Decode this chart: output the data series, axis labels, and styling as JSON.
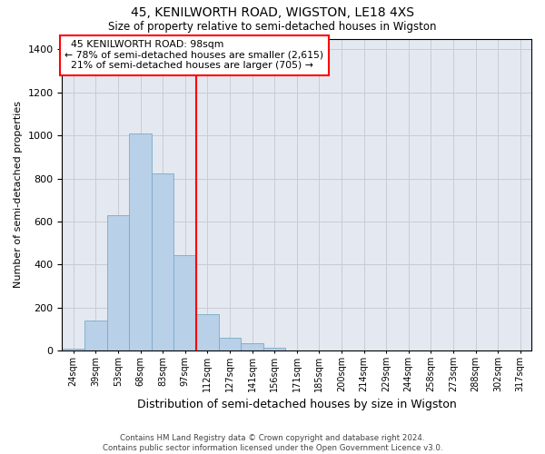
{
  "title1": "45, KENILWORTH ROAD, WIGSTON, LE18 4XS",
  "title2": "Size of property relative to semi-detached houses in Wigston",
  "xlabel": "Distribution of semi-detached houses by size in Wigston",
  "ylabel": "Number of semi-detached properties",
  "footnote1": "Contains HM Land Registry data © Crown copyright and database right 2024.",
  "footnote2": "Contains public sector information licensed under the Open Government Licence v3.0.",
  "categories": [
    "24sqm",
    "39sqm",
    "53sqm",
    "68sqm",
    "83sqm",
    "97sqm",
    "112sqm",
    "127sqm",
    "141sqm",
    "156sqm",
    "171sqm",
    "185sqm",
    "200sqm",
    "214sqm",
    "229sqm",
    "244sqm",
    "258sqm",
    "273sqm",
    "288sqm",
    "302sqm",
    "317sqm"
  ],
  "values": [
    10,
    140,
    630,
    1010,
    825,
    445,
    170,
    60,
    33,
    15,
    0,
    0,
    0,
    0,
    0,
    0,
    0,
    0,
    0,
    0,
    0
  ],
  "bar_color": "#b8d0e8",
  "bar_edge_color": "#7aaac8",
  "grid_color": "#c8ccd8",
  "background_color": "#e4e8f0",
  "property_label": "45 KENILWORTH ROAD: 98sqm",
  "pct_smaller": 78,
  "n_smaller": 2615,
  "pct_larger": 21,
  "n_larger": 705,
  "vline_x_index": 5,
  "ylim": [
    0,
    1450
  ],
  "yticks": [
    0,
    200,
    400,
    600,
    800,
    1000,
    1200,
    1400
  ]
}
